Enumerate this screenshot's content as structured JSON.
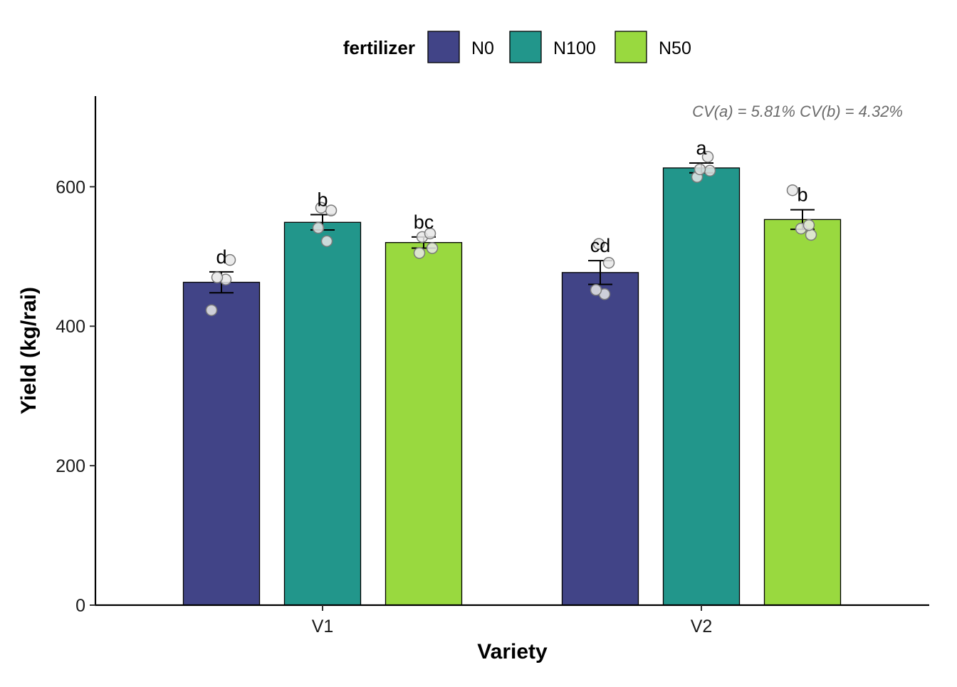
{
  "chart_data": {
    "type": "bar",
    "xlabel": "Variety",
    "ylabel": "Yield (kg/rai)",
    "categories": [
      "V1",
      "V2"
    ],
    "legend": {
      "title": "fertilizer",
      "placement": "top",
      "entries": [
        "N0",
        "N100",
        "N50"
      ]
    },
    "series": [
      {
        "name": "N0",
        "color": "#414487",
        "values": [
          463,
          477
        ],
        "errors": [
          15,
          17
        ],
        "sig_labels": [
          "d",
          "cd"
        ],
        "points": [
          [
            423,
            467,
            470,
            495
          ],
          [
            446,
            452,
            491,
            518
          ]
        ]
      },
      {
        "name": "N100",
        "color": "#22968b",
        "values": [
          549,
          627
        ],
        "errors": [
          11,
          7
        ],
        "sig_labels": [
          "b",
          "a"
        ],
        "points": [
          [
            522,
            541,
            566,
            570
          ],
          [
            614,
            623,
            625,
            643
          ]
        ]
      },
      {
        "name": "N50",
        "color": "#99d93f",
        "values": [
          520,
          553
        ],
        "errors": [
          8,
          14
        ],
        "sig_labels": [
          "bc",
          "b"
        ],
        "points": [
          [
            505,
            512,
            528,
            533
          ],
          [
            531,
            540,
            545,
            595
          ]
        ]
      }
    ],
    "ylim": [
      0,
      730
    ],
    "yticks": [
      "0",
      "200",
      "400",
      "600"
    ],
    "ytick_values": [
      0,
      200,
      400,
      600
    ],
    "annotation": "CV(a) = 5.81%  CV(b) = 4.32%",
    "grid": false
  }
}
